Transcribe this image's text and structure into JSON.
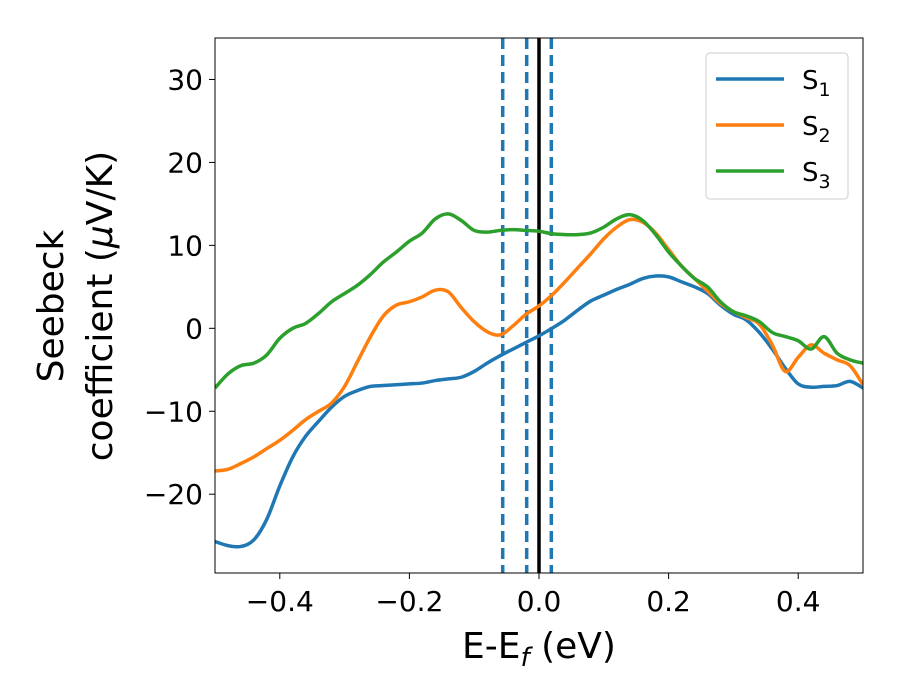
{
  "chart_data": {
    "type": "line",
    "xlabel": {
      "main": "E-E",
      "sub": "f",
      "unit": " (eV)"
    },
    "ylabel": {
      "line1": "Seebeck",
      "line2_pre": "coefficient  (",
      "line2_mu": "μ",
      "line2_post": "V/K)"
    },
    "xlim": [
      -0.5,
      0.5
    ],
    "ylim": [
      -29.5,
      35
    ],
    "xticks": [
      -0.4,
      -0.2,
      0.0,
      0.2,
      0.4
    ],
    "xtick_labels": [
      "−0.4",
      "−0.2",
      "0.0",
      "0.2",
      "0.4"
    ],
    "yticks": [
      -20,
      -10,
      0,
      10,
      20,
      30
    ],
    "ytick_labels": [
      "−20",
      "−10",
      "0",
      "10",
      "20",
      "30"
    ],
    "grid": false,
    "legend_position": "top-right",
    "vlines": [
      {
        "x": -0.056,
        "style": "dashed",
        "color": "#1f77b4"
      },
      {
        "x": -0.019,
        "style": "dashed",
        "color": "#1f77b4"
      },
      {
        "x": 0.0,
        "style": "solid",
        "color": "#000000"
      },
      {
        "x": 0.019,
        "style": "dashed",
        "color": "#1f77b4"
      }
    ],
    "series": [
      {
        "name": "S",
        "name_sub": "1",
        "color": "#1f77b4",
        "x": [
          -0.5,
          -0.48,
          -0.46,
          -0.44,
          -0.42,
          -0.4,
          -0.38,
          -0.36,
          -0.34,
          -0.32,
          -0.3,
          -0.28,
          -0.26,
          -0.24,
          -0.22,
          -0.2,
          -0.18,
          -0.16,
          -0.14,
          -0.12,
          -0.1,
          -0.08,
          -0.06,
          -0.04,
          -0.02,
          0.0,
          0.02,
          0.04,
          0.06,
          0.08,
          0.1,
          0.12,
          0.14,
          0.16,
          0.18,
          0.2,
          0.22,
          0.24,
          0.26,
          0.28,
          0.3,
          0.32,
          0.34,
          0.36,
          0.38,
          0.4,
          0.42,
          0.44,
          0.46,
          0.48,
          0.5
        ],
        "y": [
          -25.7,
          -26.2,
          -26.3,
          -25.5,
          -23.0,
          -19.0,
          -15.5,
          -13.0,
          -11.2,
          -9.5,
          -8.2,
          -7.5,
          -7.0,
          -6.9,
          -6.8,
          -6.7,
          -6.6,
          -6.3,
          -6.1,
          -5.9,
          -5.2,
          -4.2,
          -3.3,
          -2.5,
          -1.7,
          -0.9,
          0.0,
          1.0,
          2.2,
          3.3,
          4.0,
          4.7,
          5.3,
          6.0,
          6.3,
          6.2,
          5.6,
          5.0,
          4.2,
          2.8,
          1.7,
          1.0,
          -0.5,
          -2.5,
          -4.8,
          -6.7,
          -7.1,
          -7.0,
          -6.9,
          -6.4,
          -7.2
        ]
      },
      {
        "name": "S",
        "name_sub": "2",
        "color": "#ff7f0e",
        "x": [
          -0.5,
          -0.48,
          -0.46,
          -0.44,
          -0.42,
          -0.4,
          -0.38,
          -0.36,
          -0.34,
          -0.32,
          -0.3,
          -0.28,
          -0.26,
          -0.24,
          -0.22,
          -0.2,
          -0.18,
          -0.16,
          -0.14,
          -0.12,
          -0.1,
          -0.08,
          -0.06,
          -0.04,
          -0.02,
          0.0,
          0.02,
          0.04,
          0.06,
          0.08,
          0.1,
          0.12,
          0.14,
          0.16,
          0.18,
          0.2,
          0.22,
          0.24,
          0.26,
          0.28,
          0.3,
          0.32,
          0.34,
          0.36,
          0.38,
          0.4,
          0.42,
          0.44,
          0.46,
          0.48,
          0.5
        ],
        "y": [
          -17.2,
          -17.0,
          -16.3,
          -15.5,
          -14.5,
          -13.5,
          -12.3,
          -11.0,
          -10.0,
          -9.0,
          -7.0,
          -4.0,
          -1.0,
          1.5,
          2.8,
          3.2,
          3.8,
          4.6,
          4.4,
          2.5,
          0.8,
          -0.4,
          -0.8,
          0.3,
          1.7,
          2.7,
          4.0,
          5.6,
          7.3,
          9.0,
          10.8,
          12.2,
          13.1,
          12.8,
          11.5,
          9.5,
          7.5,
          6.0,
          4.5,
          3.0,
          2.0,
          1.3,
          0.5,
          -2.0,
          -5.2,
          -3.5,
          -2.0,
          -3.0,
          -3.8,
          -4.5,
          -6.8
        ]
      },
      {
        "name": "S",
        "name_sub": "3",
        "color": "#2ca02c",
        "x": [
          -0.5,
          -0.48,
          -0.46,
          -0.44,
          -0.42,
          -0.4,
          -0.38,
          -0.36,
          -0.34,
          -0.32,
          -0.3,
          -0.28,
          -0.26,
          -0.24,
          -0.22,
          -0.2,
          -0.18,
          -0.16,
          -0.14,
          -0.12,
          -0.1,
          -0.08,
          -0.06,
          -0.04,
          -0.02,
          0.0,
          0.02,
          0.04,
          0.06,
          0.08,
          0.1,
          0.12,
          0.14,
          0.16,
          0.18,
          0.2,
          0.22,
          0.24,
          0.26,
          0.28,
          0.3,
          0.32,
          0.34,
          0.36,
          0.38,
          0.4,
          0.42,
          0.44,
          0.46,
          0.48,
          0.5
        ],
        "y": [
          -7.2,
          -5.5,
          -4.5,
          -4.2,
          -3.2,
          -1.2,
          0.0,
          0.6,
          1.8,
          3.2,
          4.2,
          5.2,
          6.5,
          8.0,
          9.2,
          10.5,
          11.5,
          13.2,
          13.8,
          13.0,
          11.8,
          11.6,
          11.8,
          11.9,
          11.8,
          11.7,
          11.4,
          11.3,
          11.3,
          11.5,
          12.2,
          13.2,
          13.7,
          13.0,
          11.3,
          9.2,
          7.5,
          6.0,
          5.0,
          3.2,
          2.0,
          1.5,
          0.8,
          -0.5,
          -1.0,
          -1.5,
          -2.5,
          -1.0,
          -3.0,
          -3.8,
          -4.2
        ]
      }
    ]
  }
}
